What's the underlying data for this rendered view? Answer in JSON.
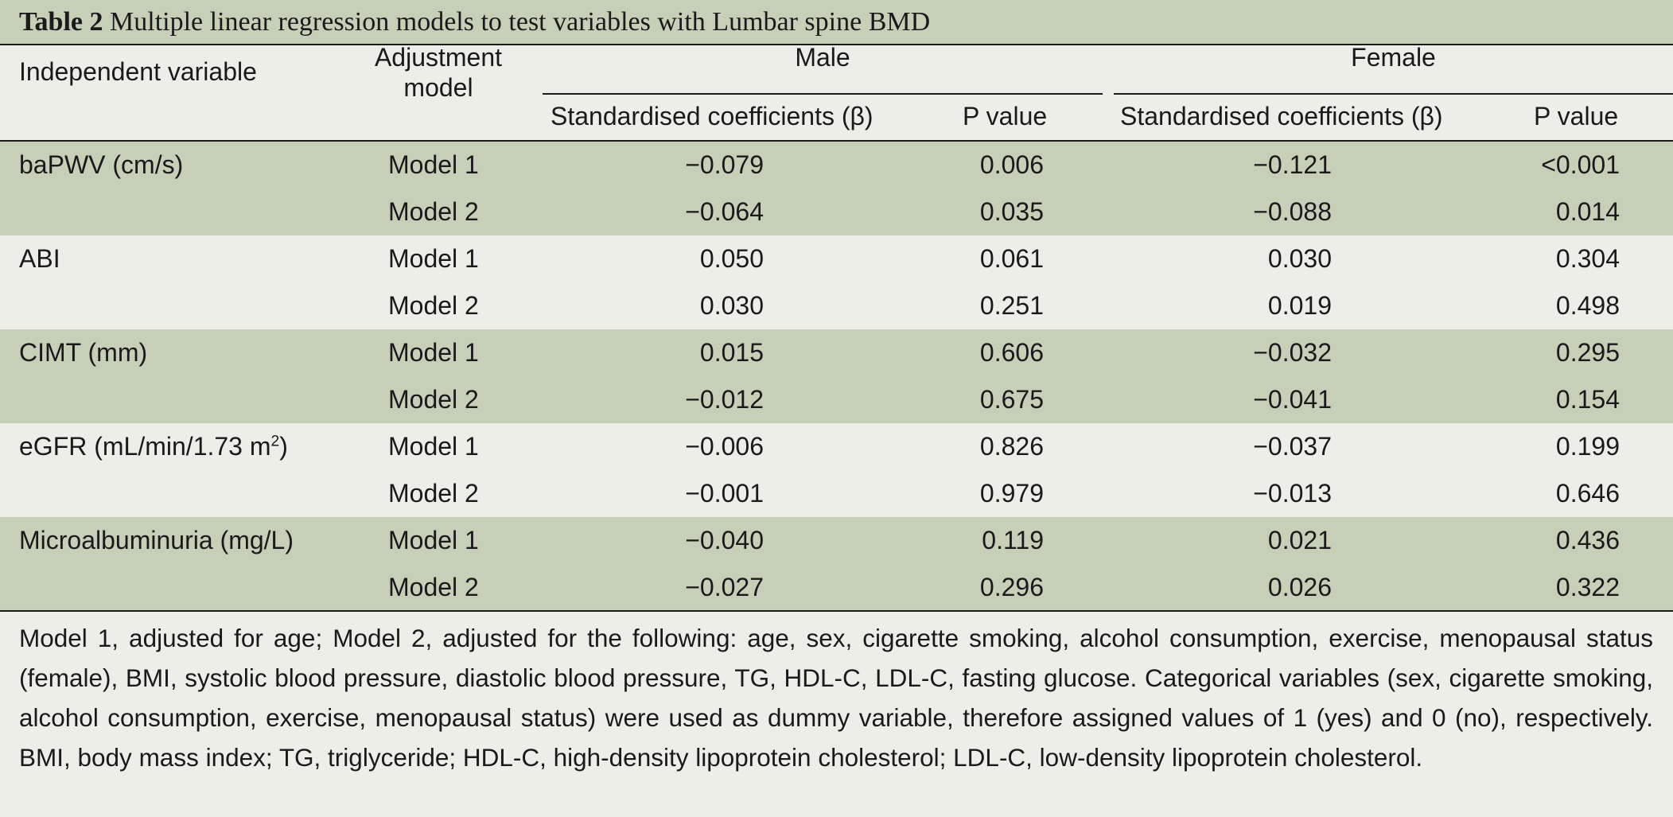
{
  "title": {
    "label": "Table 2",
    "text": "Multiple linear regression models to test variables with Lumbar spine BMD"
  },
  "headers": {
    "independent_variable": "Independent variable",
    "adjustment_model_line1": "Adjustment",
    "adjustment_model_line2": "model",
    "male": "Male",
    "female": "Female",
    "std_coef": "Standardised coefficients (β)",
    "p_value": "P value"
  },
  "rows": [
    {
      "variable": "baPWV (cm/s)",
      "model": "Model 1",
      "male_beta": "−0.079",
      "male_p": "0.006",
      "female_beta": "−0.121",
      "female_p": "<0.001"
    },
    {
      "variable": "",
      "model": "Model 2",
      "male_beta": "−0.064",
      "male_p": "0.035",
      "female_beta": "−0.088",
      "female_p": "0.014"
    },
    {
      "variable": "ABI",
      "model": "Model 1",
      "male_beta": "0.050",
      "male_p": "0.061",
      "female_beta": "0.030",
      "female_p": "0.304"
    },
    {
      "variable": "",
      "model": "Model 2",
      "male_beta": "0.030",
      "male_p": "0.251",
      "female_beta": "0.019",
      "female_p": "0.498"
    },
    {
      "variable": "CIMT (mm)",
      "model": "Model 1",
      "male_beta": "0.015",
      "male_p": "0.606",
      "female_beta": "−0.032",
      "female_p": "0.295"
    },
    {
      "variable": "",
      "model": "Model 2",
      "male_beta": "−0.012",
      "male_p": "0.675",
      "female_beta": "−0.041",
      "female_p": "0.154"
    },
    {
      "variable": "eGFR (mL/min/1.73 m",
      "variable_sup": "2",
      "variable_after": ")",
      "model": "Model 1",
      "male_beta": "−0.006",
      "male_p": "0.826",
      "female_beta": "−0.037",
      "female_p": "0.199"
    },
    {
      "variable": "",
      "model": "Model 2",
      "male_beta": "−0.001",
      "male_p": "0.979",
      "female_beta": "−0.013",
      "female_p": "0.646"
    },
    {
      "variable": "Microalbuminuria (mg/L)",
      "model": "Model 1",
      "male_beta": "−0.040",
      "male_p": "0.119",
      "female_beta": "0.021",
      "female_p": "0.436"
    },
    {
      "variable": "",
      "model": "Model 2",
      "male_beta": "−0.027",
      "male_p": "0.296",
      "female_beta": "0.026",
      "female_p": "0.322"
    }
  ],
  "footnote": "Model 1, adjusted for age; Model 2, adjusted for the following: age, sex, cigarette smoking, alcohol consumption, exercise, menopausal status (female), BMI, systolic blood pressure, diastolic blood pressure, TG, HDL-C, LDL-C, fasting glucose. Categorical variables (sex, cigarette smoking, alcohol consumption, exercise, menopausal status) were used as dummy variable, therefore assigned values of 1 (yes) and 0 (no), respectively. BMI, body mass index; TG, triglyceride; HDL-C, high-density lipoprotein cholesterol; LDL-C, low-density lipoprotein cholesterol.",
  "colors": {
    "shaded_row": "#c6cfb8",
    "background": "#eeeee8",
    "rule": "#1a1a1a"
  }
}
